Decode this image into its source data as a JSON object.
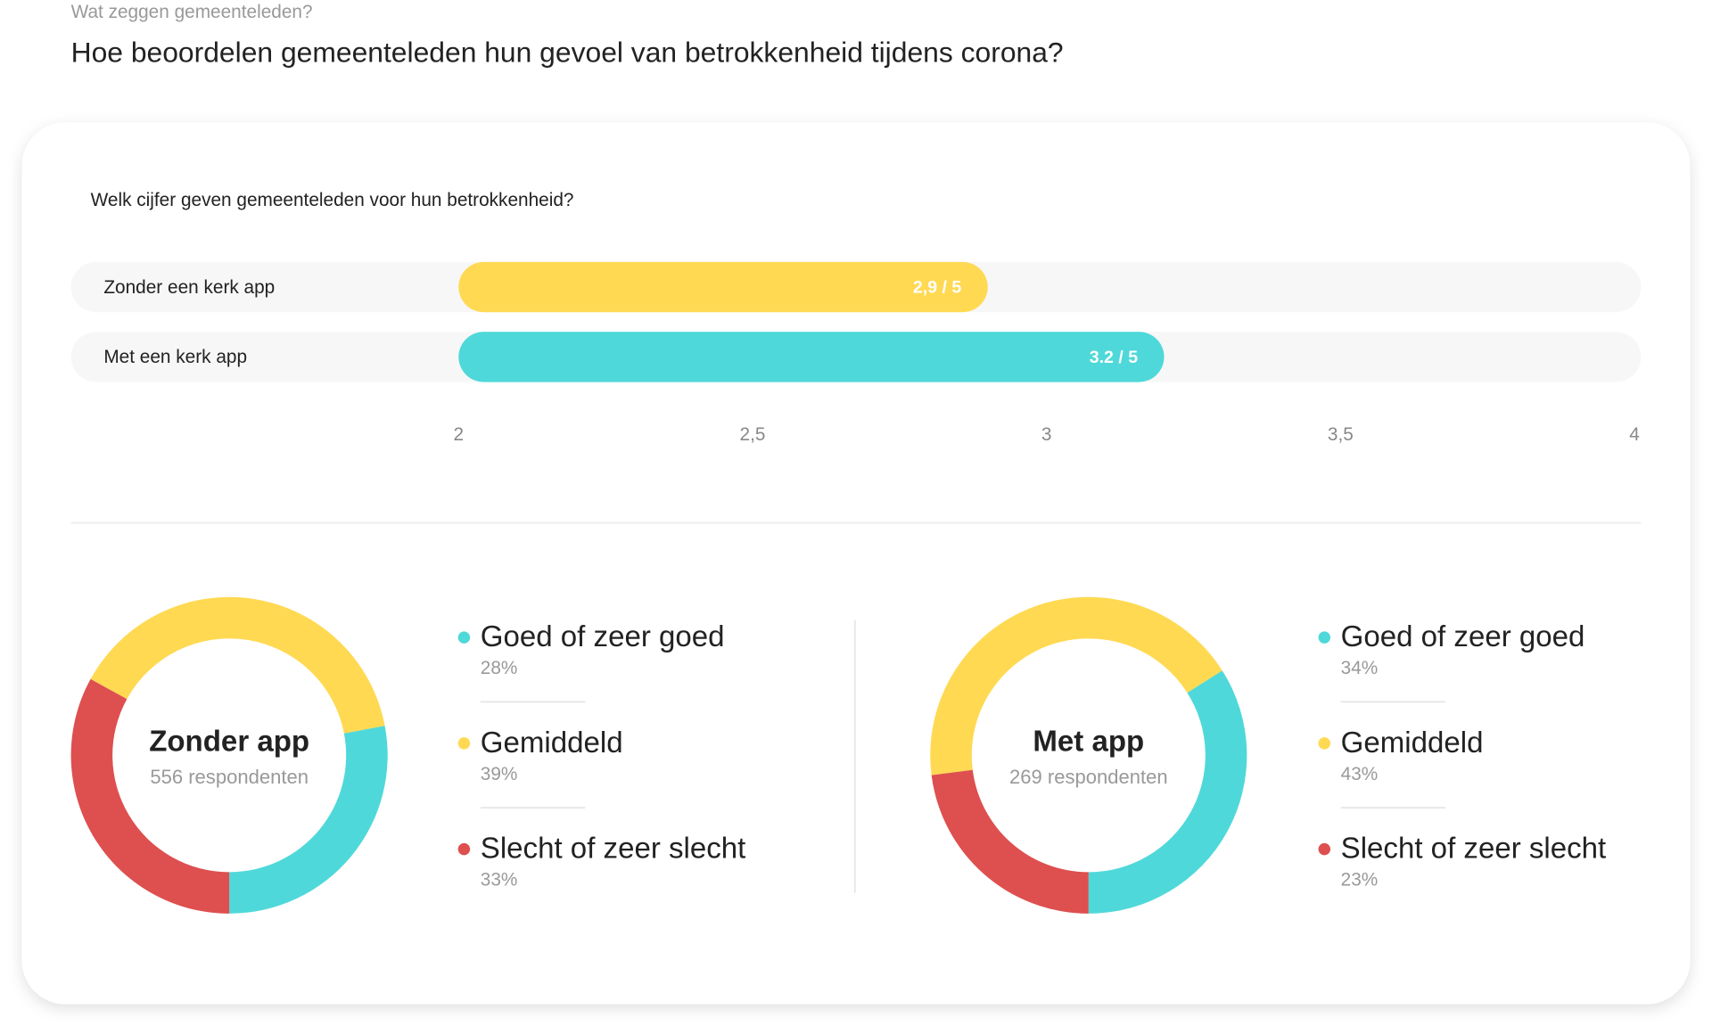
{
  "header": {
    "kicker": "Wat zeggen gemeenteleden?",
    "title": "Hoe beoordelen gemeenteleden hun gevoel van betrokkenheid tijdens corona?"
  },
  "chart_data": [
    {
      "type": "bar",
      "orientation": "horizontal",
      "title": "Welk cijfer geven gemeenteleden voor hun betrokkenheid?",
      "categories": [
        "Zonder een kerk app",
        "Met een kerk app"
      ],
      "values": [
        2.9,
        3.2
      ],
      "value_labels": [
        "2,9 / 5",
        "3.2 / 5"
      ],
      "colors": [
        "#ffd952",
        "#4fd8d9"
      ],
      "xlim": [
        2,
        4
      ],
      "xticks": [
        2,
        {
          "value": 2.5,
          "label": "2,5"
        },
        3,
        {
          "value": 3.5,
          "label": "3,5"
        },
        4
      ]
    },
    {
      "type": "pie",
      "title": "Zonder app",
      "subtitle": "556 respondenten",
      "categories": [
        "Goed of zeer goed",
        "Gemiddeld",
        "Slecht of zeer slecht"
      ],
      "values": [
        28,
        39,
        33
      ],
      "value_labels": [
        "28%",
        "39%",
        "33%"
      ],
      "colors": [
        "#4fd8d9",
        "#ffd952",
        "#de4f4f"
      ]
    },
    {
      "type": "pie",
      "title": "Met app",
      "subtitle": "269 respondenten",
      "categories": [
        "Goed of zeer goed",
        "Gemiddeld",
        "Slecht of zeer slecht"
      ],
      "values": [
        34,
        43,
        23
      ],
      "value_labels": [
        "34%",
        "43%",
        "23%"
      ],
      "colors": [
        "#4fd8d9",
        "#ffd952",
        "#de4f4f"
      ]
    }
  ]
}
